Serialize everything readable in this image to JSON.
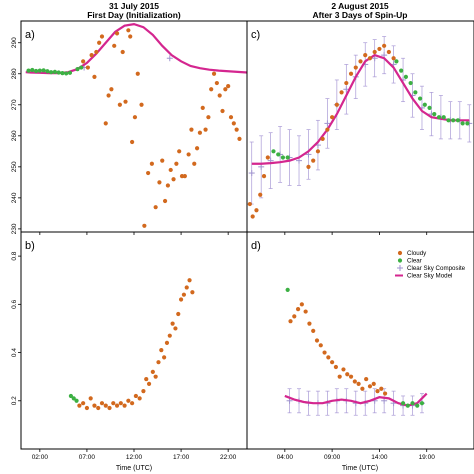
{
  "figure": {
    "left_title_line1": "31 July 2015",
    "left_title_line2": "First Day (Initialization)",
    "right_title_line1": "2 August 2015",
    "right_title_line2": "After 3 Days of Spin-Up",
    "xlabel": "Time (UTC)"
  },
  "colors": {
    "cloudy": "#d2691e",
    "clear": "#3cb043",
    "composite": "#9f93cf",
    "model": "#d4268f",
    "errorbar": "#a99ad6"
  },
  "legend": {
    "placement": "top-right of panel d",
    "items": [
      {
        "key": "cloudy",
        "label": "Cloudy"
      },
      {
        "key": "clear",
        "label": "Clear"
      },
      {
        "key": "composite",
        "label": "Clear Sky Composite"
      },
      {
        "key": "model",
        "label": "Clear Sky Model"
      }
    ]
  },
  "chart_data": [
    {
      "type": "scatter",
      "panel": "a)",
      "ylim": [
        229,
        297
      ],
      "yticks": [
        230,
        240,
        250,
        260,
        270,
        280,
        290
      ],
      "xlim": [
        0,
        24
      ],
      "xticks": [
        2,
        7,
        12,
        17,
        22
      ],
      "xticklabels": [
        "02:00",
        "07:00",
        "12:00",
        "17:00",
        "22:00"
      ],
      "show_xticklabels": false,
      "series": [
        {
          "key": "model",
          "x": [
            0.5,
            1,
            2,
            3,
            4,
            5,
            6,
            7,
            8,
            9,
            10,
            11,
            12,
            13,
            14,
            15,
            16,
            17,
            18,
            19,
            20,
            21,
            22,
            23,
            24
          ],
          "y": [
            280.5,
            280.4,
            280.3,
            280.2,
            280.2,
            280.5,
            281.5,
            283.5,
            286.5,
            290,
            293.5,
            295.5,
            296,
            295,
            292.5,
            289,
            286,
            284,
            282.5,
            281.8,
            281.3,
            281,
            280.8,
            280.6,
            280.4
          ]
        },
        {
          "key": "clear",
          "x": [
            0.8,
            1.2,
            1.6,
            2,
            2.4,
            2.8,
            3.2,
            3.6,
            4,
            4.4,
            4.8,
            5.2,
            6.0,
            6.4
          ],
          "y": [
            281,
            281.2,
            280.9,
            281,
            281.1,
            280.8,
            280.5,
            280.6,
            280.4,
            280.2,
            280.1,
            280.3,
            281.5,
            282
          ]
        },
        {
          "key": "cloudy",
          "x": [
            6.6,
            7.1,
            7.5,
            7.8,
            8,
            8.3,
            8.6,
            9,
            9.3,
            9.6,
            9.9,
            10.2,
            10.5,
            10.8,
            11.1,
            11.4,
            11.6,
            11.8,
            12.1,
            12.4,
            12.8,
            13.1,
            13.5,
            13.9,
            14.3,
            14.7,
            15,
            15.3,
            15.6,
            15.9,
            16.2,
            16.5,
            16.8,
            17.1,
            17.4,
            17.8,
            18.1,
            18.4,
            18.7,
            19,
            19.3,
            19.6,
            19.9,
            20.2,
            20.5,
            20.8,
            21.1,
            21.4,
            21.7,
            22,
            22.3,
            22.6,
            22.9,
            23.2
          ],
          "y": [
            284,
            282,
            286,
            279,
            287,
            290,
            292,
            264,
            273,
            275,
            289,
            293,
            270,
            287,
            271,
            294,
            292,
            258,
            266,
            280,
            270,
            231,
            248,
            251,
            237,
            245,
            252,
            239,
            244,
            249,
            246,
            251,
            255,
            247,
            247,
            254,
            262,
            251,
            256,
            261,
            269,
            262,
            266,
            275,
            280,
            277,
            273,
            268,
            275,
            276,
            266,
            264,
            262,
            259
          ]
        },
        {
          "key": "composite",
          "x": [
            6.7,
            15.8
          ],
          "y": [
            282,
            285
          ]
        }
      ]
    },
    {
      "type": "scatter",
      "panel": "b)",
      "ylim": [
        0.0,
        0.9
      ],
      "yticks": [
        0.2,
        0.4,
        0.6,
        0.8
      ],
      "xlim": [
        0,
        24
      ],
      "xticks": [
        2,
        7,
        12,
        17,
        22
      ],
      "xticklabels": [
        "02:00",
        "07:00",
        "12:00",
        "17:00",
        "22:00"
      ],
      "show_xticklabels": true,
      "series": [
        {
          "key": "clear",
          "x": [
            5.3,
            5.6,
            5.9
          ],
          "y": [
            0.22,
            0.21,
            0.2
          ]
        },
        {
          "key": "cloudy",
          "x": [
            6.2,
            6.6,
            7.0,
            7.4,
            7.8,
            8.2,
            8.6,
            9.0,
            9.4,
            9.8,
            10.2,
            10.6,
            11.0,
            11.4,
            11.8,
            12.2,
            12.6,
            13.0,
            13.3,
            13.6,
            14.0,
            14.3,
            14.6,
            14.9,
            15.2,
            15.5,
            15.8,
            16.1,
            16.4,
            16.7,
            17.0,
            17.3,
            17.6,
            17.9,
            18.2
          ],
          "y": [
            0.18,
            0.19,
            0.17,
            0.21,
            0.18,
            0.17,
            0.19,
            0.18,
            0.17,
            0.19,
            0.18,
            0.19,
            0.18,
            0.2,
            0.19,
            0.22,
            0.21,
            0.24,
            0.29,
            0.27,
            0.32,
            0.3,
            0.36,
            0.41,
            0.38,
            0.44,
            0.47,
            0.52,
            0.5,
            0.56,
            0.62,
            0.64,
            0.67,
            0.7,
            0.65
          ]
        }
      ]
    },
    {
      "type": "scatter",
      "panel": "c)",
      "ylim": [
        229,
        297
      ],
      "yticks": [
        230,
        240,
        250,
        260,
        270,
        280,
        290
      ],
      "xlim": [
        0,
        24
      ],
      "xticks": [
        4,
        9,
        14,
        19
      ],
      "xticklabels": [
        "04:00",
        "09:00",
        "14:00",
        "19:00"
      ],
      "show_xticklabels": false,
      "series": [
        {
          "key": "model",
          "x": [
            0.5,
            1.5,
            2.5,
            3.5,
            4.5,
            5.5,
            6.5,
            7.5,
            8.5,
            9.5,
            10.5,
            11.5,
            12.5,
            13.5,
            14.5,
            15.5,
            16.5,
            17.5,
            18.5,
            19.5,
            20.5,
            21.5,
            22.5,
            23.5
          ],
          "y": [
            251,
            251,
            251.2,
            251.5,
            252,
            253,
            255,
            258,
            262,
            267,
            273,
            279,
            284,
            286,
            285,
            282,
            277,
            272,
            268,
            266,
            265.5,
            265,
            265,
            265
          ]
        },
        {
          "key": "composite",
          "x": [
            0.5,
            1.5,
            2.5,
            3.5,
            4.5,
            5.5,
            6.5,
            7.5,
            8.5,
            9.5,
            10.5,
            11.5,
            12.5,
            13.5,
            14.5,
            15.5,
            16.5,
            17.5,
            18.5,
            19.5,
            20.5,
            21.5,
            22.5,
            23.5
          ],
          "y": [
            248,
            250,
            252,
            254,
            253,
            252,
            254,
            257,
            264,
            270,
            275,
            279,
            283,
            285,
            286,
            283,
            278,
            273,
            269,
            267,
            266,
            265,
            265,
            264
          ],
          "err": [
            10,
            10,
            9,
            9,
            9,
            8,
            8,
            8,
            8,
            8,
            8,
            7,
            7,
            6,
            6,
            6,
            7,
            7,
            7,
            7,
            7,
            6,
            6,
            6
          ]
        },
        {
          "key": "clear",
          "x": [
            2.8,
            3.3,
            3.8,
            4.3,
            15.8,
            16.3,
            16.8,
            17.3,
            17.8,
            18.3,
            18.8,
            19.3,
            19.8,
            20.3,
            20.8,
            21.3,
            21.8,
            22.3,
            22.8,
            23.3
          ],
          "y": [
            255,
            254,
            253,
            253,
            284,
            281,
            279,
            277,
            274,
            272,
            270,
            269,
            267,
            266,
            266,
            265,
            265,
            265,
            264,
            264
          ]
        },
        {
          "key": "cloudy",
          "x": [
            0.3,
            0.6,
            1,
            1.4,
            1.8,
            2.2,
            6.5,
            7,
            7.5,
            8,
            8.5,
            9,
            9.5,
            10,
            10.5,
            11,
            11.5,
            12,
            12.5,
            13,
            13.5,
            14,
            14.5,
            15,
            15.5
          ],
          "y": [
            238,
            234,
            236,
            241,
            247,
            253,
            250,
            252,
            255,
            259,
            262,
            266,
            270,
            274,
            277,
            280,
            282,
            284,
            286,
            285,
            287,
            288,
            289,
            287,
            285
          ]
        }
      ]
    },
    {
      "type": "scatter",
      "panel": "d)",
      "ylim": [
        0.0,
        0.9
      ],
      "yticks": [
        0.2,
        0.4,
        0.6,
        0.8
      ],
      "xlim": [
        0,
        24
      ],
      "xticks": [
        4,
        9,
        14,
        19
      ],
      "xticklabels": [
        "04:00",
        "09:00",
        "14:00",
        "19:00"
      ],
      "show_xticklabels": true,
      "series": [
        {
          "key": "model",
          "x": [
            4,
            5,
            6,
            7,
            8,
            9,
            10,
            11,
            12,
            13,
            14,
            15,
            16,
            17,
            18,
            19
          ],
          "y": [
            0.22,
            0.205,
            0.195,
            0.19,
            0.19,
            0.2,
            0.205,
            0.2,
            0.19,
            0.2,
            0.215,
            0.21,
            0.19,
            0.18,
            0.19,
            0.23
          ]
        },
        {
          "key": "composite",
          "x": [
            4.5,
            5.5,
            6.5,
            7.5,
            8.5,
            9.5,
            10.5,
            11.5,
            12.5,
            13.5,
            14.5,
            15.5,
            16.5,
            17.5,
            18.5
          ],
          "y": [
            0.2,
            0.2,
            0.19,
            0.19,
            0.19,
            0.2,
            0.2,
            0.19,
            0.19,
            0.2,
            0.2,
            0.19,
            0.18,
            0.18,
            0.19
          ],
          "err": [
            0.05,
            0.05,
            0.05,
            0.05,
            0.05,
            0.05,
            0.05,
            0.05,
            0.05,
            0.05,
            0.05,
            0.05,
            0.04,
            0.04,
            0.04
          ]
        },
        {
          "key": "clear",
          "x": [
            4.3,
            16.5,
            17,
            17.5,
            18,
            18.5
          ],
          "y": [
            0.66,
            0.19,
            0.18,
            0.19,
            0.18,
            0.19
          ]
        },
        {
          "key": "cloudy",
          "x": [
            4.6,
            5,
            5.4,
            5.8,
            6.2,
            6.6,
            7,
            7.4,
            7.8,
            8.2,
            8.6,
            9,
            9.4,
            9.8,
            10.2,
            10.6,
            11,
            11.4,
            11.8,
            12.2,
            12.6,
            13,
            13.4,
            13.8,
            14.2,
            14.6
          ],
          "y": [
            0.53,
            0.55,
            0.58,
            0.6,
            0.57,
            0.52,
            0.49,
            0.45,
            0.43,
            0.4,
            0.38,
            0.36,
            0.34,
            0.3,
            0.33,
            0.31,
            0.3,
            0.28,
            0.27,
            0.25,
            0.29,
            0.26,
            0.27,
            0.24,
            0.25,
            0.23
          ]
        }
      ]
    }
  ]
}
